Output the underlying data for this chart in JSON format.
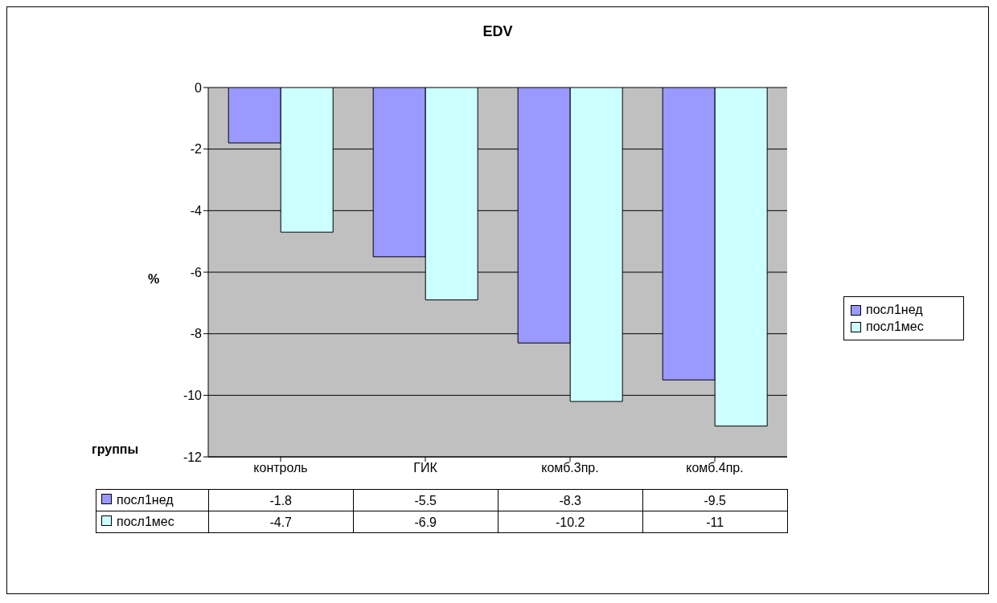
{
  "chart_data": {
    "type": "bar",
    "title": "EDV",
    "xlabel": "группы",
    "ylabel": "%",
    "categories": [
      "контроль",
      "ГИК",
      "комб.3пр.",
      "комб.4пр."
    ],
    "series": [
      {
        "name": "посл1нед",
        "color": "#9999ff",
        "values": [
          -1.8,
          -5.5,
          -8.3,
          -9.5
        ]
      },
      {
        "name": "посл1мес",
        "color": "#ccffff",
        "values": [
          -4.7,
          -6.9,
          -10.2,
          -11
        ]
      }
    ],
    "ylim": [
      -12,
      0
    ],
    "yticks": [
      -12,
      -10,
      -8,
      -6,
      -4,
      -2,
      0
    ],
    "grid": "y",
    "legend": "right",
    "data_labels": true
  }
}
